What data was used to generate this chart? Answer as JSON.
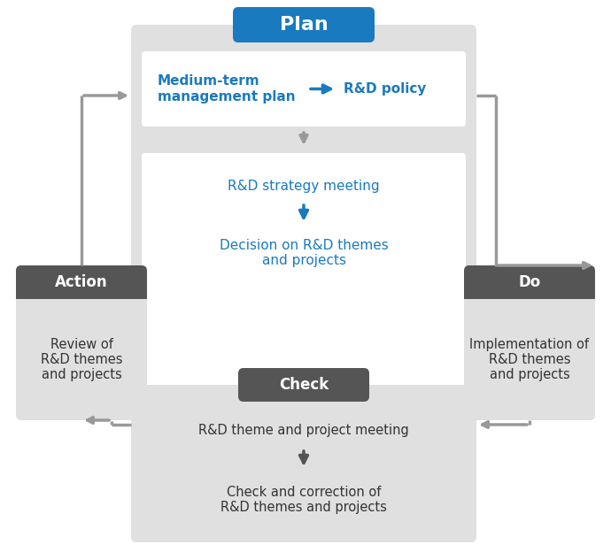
{
  "bg_color": "#ffffff",
  "blue": "#1a7abf",
  "dark_gray": "#555555",
  "light_gray": "#e0e0e0",
  "white": "#ffffff",
  "text_dark": "#333333",
  "arrow_gray": "#999999",
  "plan_label": "Plan",
  "action_label": "Action",
  "do_label": "Do",
  "check_label": "Check",
  "medium_term_line1": "Medium-term",
  "medium_term_line2": "management plan",
  "rd_policy": "R&D policy",
  "strategy_meeting": "R&D strategy meeting",
  "decision_text": "Decision on R&D themes\nand projects",
  "action_text": "Review of\nR&D themes\nand projects",
  "do_text": "Implementation of\nR&D themes\nand projects",
  "check_line1": "R&D theme and project meeting",
  "check_line2": "Check and correction of\nR&D themes and projects"
}
